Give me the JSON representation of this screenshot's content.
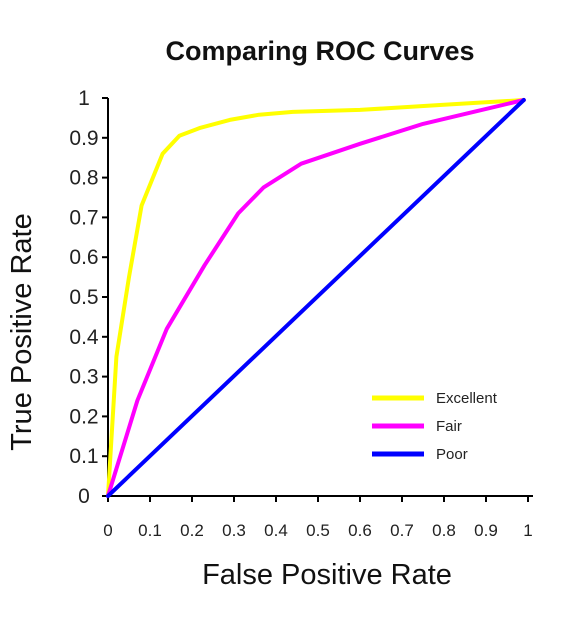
{
  "chart_data": {
    "type": "line",
    "title": "Comparing ROC Curves",
    "xlabel": "False Positive Rate",
    "ylabel": "True Positive Rate",
    "xlim": [
      0,
      1
    ],
    "ylim": [
      0,
      1
    ],
    "grid": false,
    "legend_position": "bottom-right",
    "x_ticks": [
      "0",
      "0.1",
      "0.2",
      "0.3",
      "0.4",
      "0.5",
      "0.6",
      "0.7",
      "0.8",
      "0.9",
      "1"
    ],
    "y_ticks": [
      "0",
      "0.1",
      "0.2",
      "0.3",
      "0.4",
      "0.5",
      "0.6",
      "0.7",
      "0.8",
      "0.9",
      "1"
    ],
    "series": [
      {
        "name": "Excellent",
        "color": "#ffff00",
        "points": [
          [
            0,
            0
          ],
          [
            0.02,
            0.35
          ],
          [
            0.05,
            0.55
          ],
          [
            0.08,
            0.73
          ],
          [
            0.13,
            0.86
          ],
          [
            0.17,
            0.905
          ],
          [
            0.22,
            0.925
          ],
          [
            0.29,
            0.945
          ],
          [
            0.36,
            0.958
          ],
          [
            0.44,
            0.965
          ],
          [
            0.6,
            0.97
          ],
          [
            0.8,
            0.983
          ],
          [
            0.99,
            0.995
          ]
        ]
      },
      {
        "name": "Fair",
        "color": "#ff00ff",
        "points": [
          [
            0,
            0
          ],
          [
            0.07,
            0.24
          ],
          [
            0.14,
            0.42
          ],
          [
            0.23,
            0.58
          ],
          [
            0.31,
            0.71
          ],
          [
            0.37,
            0.775
          ],
          [
            0.46,
            0.835
          ],
          [
            0.6,
            0.885
          ],
          [
            0.75,
            0.935
          ],
          [
            0.87,
            0.965
          ],
          [
            0.99,
            0.995
          ]
        ]
      },
      {
        "name": "Poor",
        "color": "#0000ff",
        "points": [
          [
            0,
            0
          ],
          [
            0.99,
            0.995
          ]
        ]
      }
    ]
  }
}
